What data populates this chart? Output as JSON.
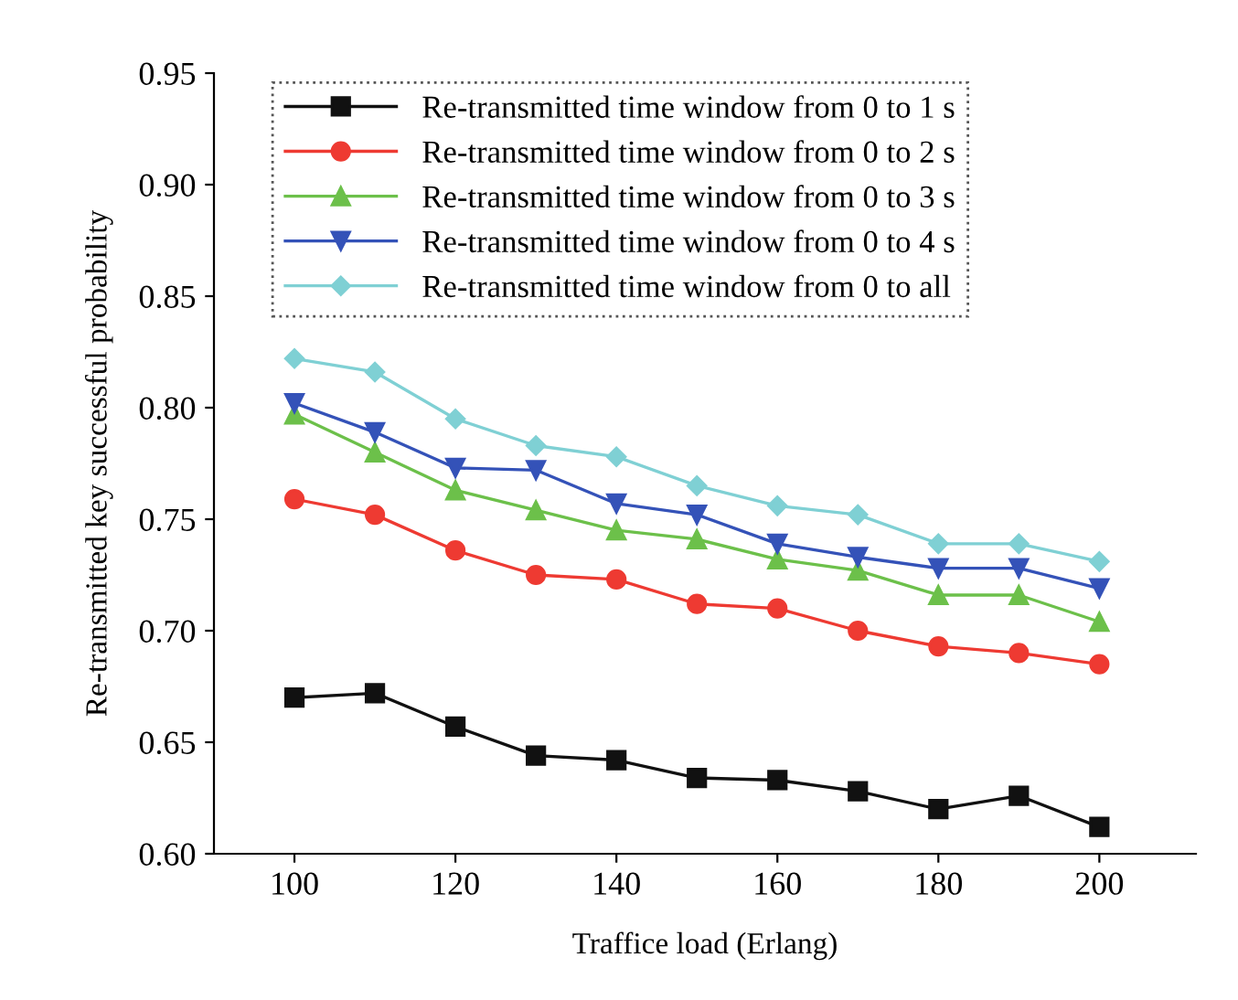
{
  "chart_data": {
    "type": "line",
    "xlabel": "Traffice load (Erlang)",
    "ylabel": "Re-transmitted key successful probability",
    "x": [
      100,
      110,
      120,
      130,
      140,
      150,
      160,
      170,
      180,
      190,
      200
    ],
    "series": [
      {
        "name": "Re-transmitted time window from 0 to 1 s",
        "color": "#111111",
        "marker": "square",
        "values": [
          0.67,
          0.672,
          0.657,
          0.644,
          0.642,
          0.634,
          0.633,
          0.628,
          0.62,
          0.626,
          0.612
        ]
      },
      {
        "name": "Re-transmitted time window from 0 to 2 s",
        "color": "#ee3a32",
        "marker": "circle",
        "values": [
          0.759,
          0.752,
          0.736,
          0.725,
          0.723,
          0.712,
          0.71,
          0.7,
          0.693,
          0.69,
          0.685
        ]
      },
      {
        "name": "Re-transmitted time window from 0 to 3 s",
        "color": "#6cc04a",
        "marker": "triangle",
        "values": [
          0.797,
          0.78,
          0.763,
          0.754,
          0.745,
          0.741,
          0.732,
          0.727,
          0.716,
          0.716,
          0.704
        ]
      },
      {
        "name": "Re-transmitted time window from 0 to 4 s",
        "color": "#3452b8",
        "marker": "triangle_down",
        "values": [
          0.802,
          0.789,
          0.773,
          0.772,
          0.757,
          0.752,
          0.739,
          0.733,
          0.728,
          0.728,
          0.719
        ]
      },
      {
        "name": "Re-transmitted time window from 0 to all",
        "color": "#7fd0d4",
        "marker": "diamond",
        "values": [
          0.822,
          0.816,
          0.795,
          0.783,
          0.778,
          0.765,
          0.756,
          0.752,
          0.739,
          0.739,
          0.731
        ]
      }
    ],
    "xlim": [
      90,
      212
    ],
    "xticks": [
      100,
      120,
      140,
      160,
      180,
      200
    ],
    "ylim": [
      0.6,
      0.95
    ],
    "yticks": [
      {
        "value": 0.6,
        "label": "0.60"
      },
      {
        "value": 0.65,
        "label": "0.65"
      },
      {
        "value": 0.7,
        "label": "0.70"
      },
      {
        "value": 0.75,
        "label": "0.75"
      },
      {
        "value": 0.8,
        "label": "0.80"
      },
      {
        "value": 0.85,
        "label": "0.85"
      },
      {
        "value": 0.9,
        "label": "0.90"
      },
      {
        "value": 0.95,
        "label": "0.95"
      }
    ],
    "grid": false,
    "legend": "top left",
    "line_style": "solid"
  }
}
